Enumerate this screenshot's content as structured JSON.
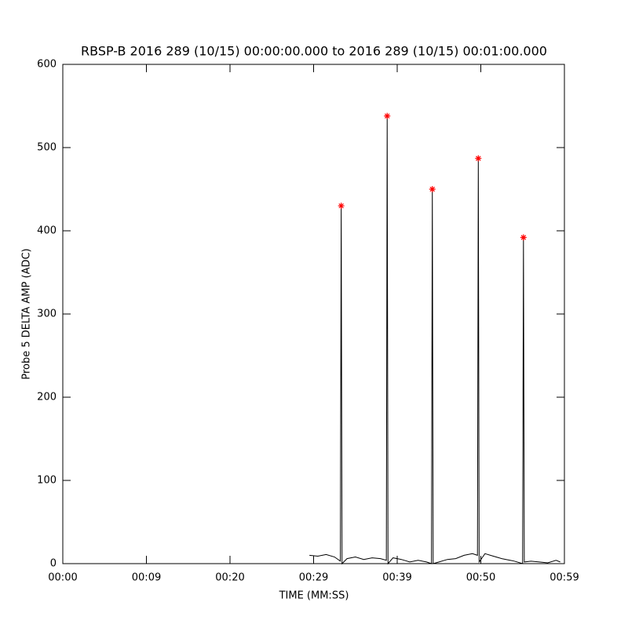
{
  "chart_data": {
    "type": "line",
    "title": "RBSP-B 2016 289 (10/15) 00:00:00.000 to 2016 289 (10/15) 00:01:00.000",
    "x_label": "TIME (MM:SS)",
    "y_label": "Probe 5 DELTA AMP (ADC)",
    "xlim": [
      0,
      60
    ],
    "xticks": [
      {
        "value": 0,
        "label": "00:00"
      },
      {
        "value": 10,
        "label": "00:09"
      },
      {
        "value": 20,
        "label": "00:20"
      },
      {
        "value": 30,
        "label": "00:29"
      },
      {
        "value": 40,
        "label": "00:39"
      },
      {
        "value": 50,
        "label": "00:50"
      },
      {
        "value": 60,
        "label": "00:59"
      }
    ],
    "ylim": [
      0,
      600
    ],
    "yticks": [
      0,
      100,
      200,
      300,
      400,
      500,
      600
    ],
    "series": [
      {
        "color": "#000000",
        "style": "line",
        "x": [
          29.5,
          30.5,
          31.5,
          32.5,
          33.2,
          33.3,
          33.4,
          34,
          35,
          36,
          37,
          38,
          38.7,
          38.8,
          38.9,
          39.5,
          40.5,
          41.5,
          42.5,
          43.5,
          44.1,
          44.2,
          44.3,
          45,
          46,
          47,
          48,
          49,
          49.6,
          49.7,
          49.8,
          50.5,
          51.5,
          52.5,
          53.5,
          54,
          55,
          55.1,
          55.2,
          56,
          57,
          58,
          59,
          59.5
        ],
        "values": [
          10,
          9,
          11,
          8,
          3,
          430,
          0,
          6,
          8,
          5,
          7,
          6,
          4,
          538,
          0,
          7,
          5,
          2,
          4,
          2,
          0,
          450,
          0,
          2,
          5,
          6,
          10,
          12,
          10,
          487,
          2,
          12,
          9,
          6,
          4,
          3,
          0,
          392,
          2,
          3,
          2,
          1,
          4,
          2
        ]
      },
      {
        "color": "#ff0000",
        "style": "asterisk",
        "x": [
          33.3,
          38.8,
          44.2,
          49.7,
          55.1
        ],
        "values": [
          430,
          538,
          450,
          487,
          392
        ]
      }
    ]
  }
}
